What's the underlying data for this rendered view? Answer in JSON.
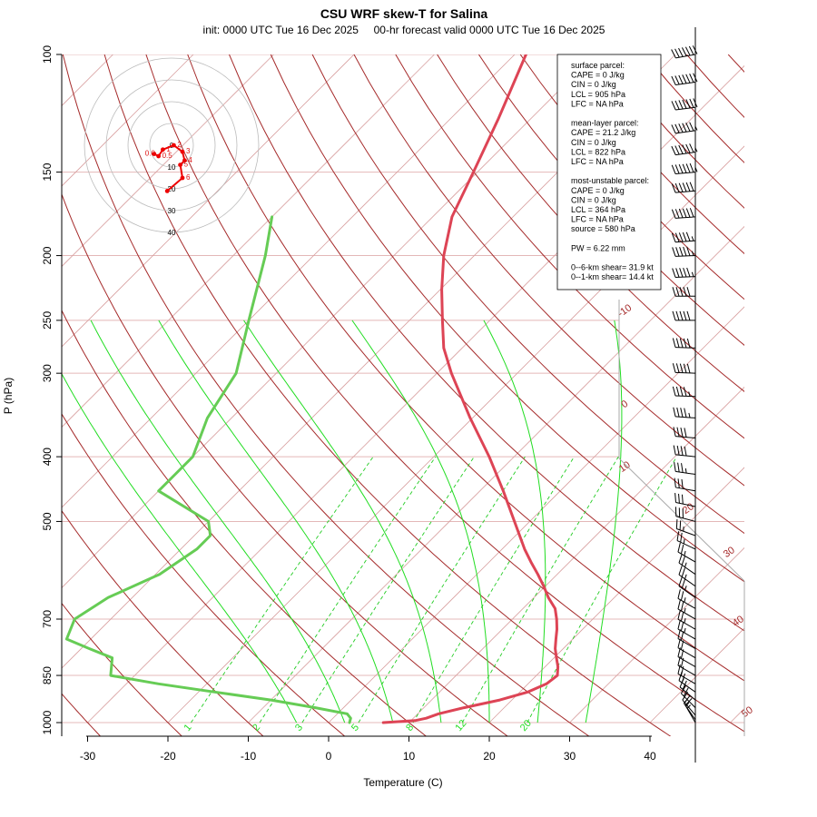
{
  "chart_data": {
    "type": "line",
    "title": "CSU WRF skew-T for Salina",
    "subtitle": "init: 0000 UTC Tue 16 Dec 2025     00-hr forecast valid 0000 UTC Tue 16 Dec 2025",
    "xlabel": "Temperature (C)",
    "ylabel": "P (hPa)",
    "xlim": [
      -33,
      44
    ],
    "ylim": [
      1000,
      100
    ],
    "x_ticks": [
      "-30",
      "-20",
      "-10",
      "0",
      "10",
      "20",
      "30",
      "40"
    ],
    "x_tick_values": [
      -30,
      -20,
      -10,
      0,
      10,
      20,
      30,
      40
    ],
    "p_ticks": [
      "100",
      "150",
      "200",
      "250",
      "300",
      "400",
      "500",
      "700",
      "850",
      "1000"
    ],
    "p_tick_values": [
      100,
      150,
      200,
      250,
      300,
      400,
      500,
      700,
      850,
      1000
    ],
    "series": [
      {
        "name": "Temperature",
        "color": "#dd4455",
        "points": [
          [
            1000,
            6.8
          ],
          [
            997,
            8.5
          ],
          [
            993,
            10.5
          ],
          [
            985,
            11.6
          ],
          [
            970,
            12.6
          ],
          [
            950,
            15.0
          ],
          [
            925,
            18.5
          ],
          [
            900,
            21.0
          ],
          [
            875,
            22.3
          ],
          [
            850,
            22.6
          ],
          [
            825,
            21.6
          ],
          [
            800,
            20.3
          ],
          [
            775,
            19.0
          ],
          [
            750,
            17.9
          ],
          [
            725,
            16.8
          ],
          [
            700,
            15.5
          ],
          [
            675,
            14.0
          ],
          [
            650,
            11.8
          ],
          [
            625,
            9.8
          ],
          [
            600,
            7.6
          ],
          [
            575,
            5.2
          ],
          [
            550,
            2.8
          ],
          [
            500,
            -1.9
          ],
          [
            450,
            -7.1
          ],
          [
            400,
            -13.1
          ],
          [
            350,
            -20.3
          ],
          [
            300,
            -28.2
          ],
          [
            275,
            -32.3
          ],
          [
            250,
            -35.9
          ],
          [
            225,
            -39.8
          ],
          [
            200,
            -43.8
          ],
          [
            175,
            -47.6
          ],
          [
            150,
            -50.5
          ],
          [
            125,
            -54.0
          ],
          [
            100,
            -58.6
          ]
        ]
      },
      {
        "name": "Dewpoint",
        "color": "#66cc55",
        "points": [
          [
            1000,
            2.6
          ],
          [
            985,
            2.2
          ],
          [
            970,
            1.2
          ],
          [
            950,
            -3.5
          ],
          [
            925,
            -10.0
          ],
          [
            900,
            -18.0
          ],
          [
            875,
            -26.0
          ],
          [
            850,
            -33.0
          ],
          [
            800,
            -35.0
          ],
          [
            775,
            -39.0
          ],
          [
            750,
            -43.0
          ],
          [
            700,
            -44.5
          ],
          [
            650,
            -43.0
          ],
          [
            600,
            -39.5
          ],
          [
            550,
            -38.0
          ],
          [
            525,
            -38.0
          ],
          [
            500,
            -40.0
          ],
          [
            450,
            -50.0
          ],
          [
            425,
            -50.0
          ],
          [
            400,
            -50.0
          ],
          [
            350,
            -53.0
          ],
          [
            300,
            -55.0
          ],
          [
            250,
            -60.0
          ],
          [
            200,
            -66.0
          ],
          [
            175,
            -70.0
          ]
        ]
      }
    ],
    "dry_adiabat_labels": [],
    "isotherm_labels": [
      "-10",
      "0",
      "10",
      "20",
      "30",
      "40",
      "50"
    ],
    "mixing_ratio_labels": [
      "1",
      "2",
      "3",
      "5",
      "8",
      "12",
      "20"
    ],
    "mixing_ratio_values": [
      1,
      2,
      3,
      5,
      8,
      12,
      20
    ],
    "colors": {
      "isotherm": "#d8a0a0",
      "isobar": "#e4b8b8",
      "dry_adiabat": "#a52a2a",
      "moist_adiabat": "#22dd22",
      "mixing_ratio": "#22cc22",
      "isotherm_label": "#a52a2a"
    },
    "hodograph": {
      "ring_labels": [
        "0",
        "10",
        "20",
        "30",
        "40"
      ],
      "ring_values": [
        0,
        10,
        20,
        30,
        40
      ],
      "points": [
        [
          -2,
          21
        ],
        [
          5,
          15
        ],
        [
          4,
          9
        ],
        [
          6,
          7
        ],
        [
          5,
          3
        ],
        [
          1,
          0
        ],
        [
          -4,
          2
        ],
        [
          -6,
          5
        ],
        [
          -8,
          4
        ]
      ],
      "point_labels": [
        "0.0",
        "0.5",
        "1",
        "2",
        "3",
        "4",
        "5",
        "6"
      ]
    },
    "info_box": {
      "lines": [
        "surface parcel:",
        "CAPE = 0 J/kg",
        "CIN = 0 J/kg",
        "LCL = 905 hPa",
        "LFC = NA hPa",
        "",
        "mean-layer parcel:",
        "CAPE = 21.2 J/kg",
        "CIN = 0 J/kg",
        "LCL = 822 hPa",
        "LFC = NA hPa",
        "",
        "most-unstable parcel:",
        "CAPE = 0 J/kg",
        "CIN = 0 J/kg",
        "LCL = 364 hPa",
        "LFC = NA hPa",
        "source = 580 hPa",
        "",
        "PW =  6.22 mm",
        "",
        "0--6-km shear= 31.9 kt",
        "0--1-km shear= 14.4 kt"
      ]
    },
    "wind_barbs": [
      {
        "p": 100,
        "speed": 70,
        "dir": 260
      },
      {
        "p": 110,
        "speed": 70,
        "dir": 262
      },
      {
        "p": 120,
        "speed": 70,
        "dir": 263
      },
      {
        "p": 130,
        "speed": 65,
        "dir": 262
      },
      {
        "p": 140,
        "speed": 65,
        "dir": 262
      },
      {
        "p": 150,
        "speed": 65,
        "dir": 265
      },
      {
        "p": 160,
        "speed": 60,
        "dir": 265
      },
      {
        "p": 175,
        "speed": 60,
        "dir": 266
      },
      {
        "p": 190,
        "speed": 55,
        "dir": 266
      },
      {
        "p": 200,
        "speed": 55,
        "dir": 268
      },
      {
        "p": 215,
        "speed": 55,
        "dir": 268
      },
      {
        "p": 230,
        "speed": 50,
        "dir": 270
      },
      {
        "p": 250,
        "speed": 50,
        "dir": 270
      },
      {
        "p": 275,
        "speed": 50,
        "dir": 272
      },
      {
        "p": 300,
        "speed": 50,
        "dir": 272
      },
      {
        "p": 325,
        "speed": 45,
        "dir": 272
      },
      {
        "p": 350,
        "speed": 45,
        "dir": 274
      },
      {
        "p": 375,
        "speed": 40,
        "dir": 275
      },
      {
        "p": 400,
        "speed": 40,
        "dir": 276
      },
      {
        "p": 425,
        "speed": 35,
        "dir": 278
      },
      {
        "p": 450,
        "speed": 30,
        "dir": 280
      },
      {
        "p": 475,
        "speed": 30,
        "dir": 282
      },
      {
        "p": 500,
        "speed": 30,
        "dir": 285
      },
      {
        "p": 525,
        "speed": 25,
        "dir": 290
      },
      {
        "p": 550,
        "speed": 25,
        "dir": 295
      },
      {
        "p": 575,
        "speed": 25,
        "dir": 300
      },
      {
        "p": 600,
        "speed": 25,
        "dir": 305
      },
      {
        "p": 625,
        "speed": 25,
        "dir": 305
      },
      {
        "p": 650,
        "speed": 25,
        "dir": 305
      },
      {
        "p": 675,
        "speed": 25,
        "dir": 300
      },
      {
        "p": 700,
        "speed": 25,
        "dir": 300
      },
      {
        "p": 725,
        "speed": 25,
        "dir": 300
      },
      {
        "p": 750,
        "speed": 25,
        "dir": 300
      },
      {
        "p": 775,
        "speed": 20,
        "dir": 300
      },
      {
        "p": 800,
        "speed": 20,
        "dir": 300
      },
      {
        "p": 825,
        "speed": 20,
        "dir": 300
      },
      {
        "p": 850,
        "speed": 20,
        "dir": 300
      },
      {
        "p": 875,
        "speed": 20,
        "dir": 300
      },
      {
        "p": 900,
        "speed": 20,
        "dir": 305
      },
      {
        "p": 925,
        "speed": 20,
        "dir": 310
      },
      {
        "p": 950,
        "speed": 20,
        "dir": 315
      },
      {
        "p": 975,
        "speed": 15,
        "dir": 320
      },
      {
        "p": 990,
        "speed": 15,
        "dir": 325
      },
      {
        "p": 1000,
        "speed": 15,
        "dir": 330
      }
    ]
  }
}
